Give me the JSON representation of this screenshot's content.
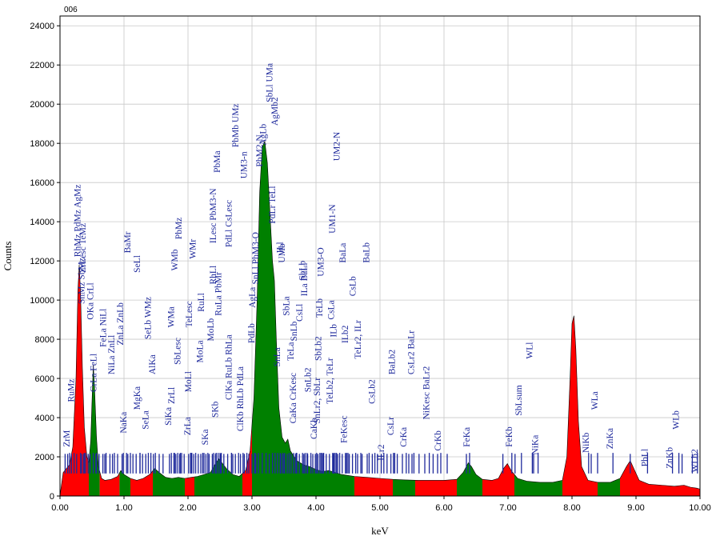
{
  "chart_data": {
    "type": "area",
    "spectrum_label": "006",
    "xlabel": "keV",
    "ylabel": "Counts",
    "xlim": [
      0,
      10
    ],
    "ylim": [
      0,
      24500
    ],
    "x_ticks": [
      "0.00",
      "1.00",
      "2.00",
      "3.00",
      "4.00",
      "5.00",
      "6.00",
      "7.00",
      "8.00",
      "9.00",
      "10.00"
    ],
    "y_ticks": [
      "0",
      "2000",
      "4000",
      "6000",
      "8000",
      "10000",
      "12000",
      "14000",
      "16000",
      "18000",
      "20000",
      "22000",
      "24000"
    ],
    "colors": {
      "high_region": "#ff0000",
      "low_region": "#008000",
      "markers": "#1f2a9c",
      "outline": "#000000"
    },
    "color_bands": [
      {
        "from": 0.0,
        "to": 0.45,
        "color": "red"
      },
      {
        "from": 0.45,
        "to": 0.62,
        "color": "green"
      },
      {
        "from": 0.62,
        "to": 0.93,
        "color": "red"
      },
      {
        "from": 0.93,
        "to": 1.1,
        "color": "green"
      },
      {
        "from": 1.1,
        "to": 1.45,
        "color": "red"
      },
      {
        "from": 1.45,
        "to": 1.95,
        "color": "green"
      },
      {
        "from": 1.95,
        "to": 2.1,
        "color": "red"
      },
      {
        "from": 2.1,
        "to": 2.85,
        "color": "green"
      },
      {
        "from": 2.85,
        "to": 3.0,
        "color": "red"
      },
      {
        "from": 3.0,
        "to": 4.6,
        "color": "green"
      },
      {
        "from": 4.6,
        "to": 5.2,
        "color": "red"
      },
      {
        "from": 5.2,
        "to": 5.55,
        "color": "green"
      },
      {
        "from": 5.55,
        "to": 6.2,
        "color": "red"
      },
      {
        "from": 6.2,
        "to": 6.6,
        "color": "green"
      },
      {
        "from": 6.6,
        "to": 7.1,
        "color": "red"
      },
      {
        "from": 7.1,
        "to": 7.85,
        "color": "green"
      },
      {
        "from": 7.85,
        "to": 8.4,
        "color": "red"
      },
      {
        "from": 8.4,
        "to": 8.75,
        "color": "green"
      },
      {
        "from": 8.75,
        "to": 10.0,
        "color": "red"
      }
    ],
    "spectrum": [
      [
        0.0,
        0
      ],
      [
        0.02,
        500
      ],
      [
        0.05,
        1200
      ],
      [
        0.1,
        1400
      ],
      [
        0.15,
        1600
      ],
      [
        0.2,
        2500
      ],
      [
        0.25,
        6000
      ],
      [
        0.28,
        10500
      ],
      [
        0.3,
        11800
      ],
      [
        0.32,
        10500
      ],
      [
        0.35,
        6500
      ],
      [
        0.38,
        3500
      ],
      [
        0.42,
        2000
      ],
      [
        0.45,
        1700
      ],
      [
        0.48,
        2800
      ],
      [
        0.5,
        4800
      ],
      [
        0.52,
        6700
      ],
      [
        0.54,
        5500
      ],
      [
        0.57,
        3000
      ],
      [
        0.6,
        1500
      ],
      [
        0.65,
        900
      ],
      [
        0.7,
        800
      ],
      [
        0.8,
        850
      ],
      [
        0.9,
        1000
      ],
      [
        0.95,
        1300
      ],
      [
        1.0,
        1100
      ],
      [
        1.1,
        900
      ],
      [
        1.2,
        800
      ],
      [
        1.3,
        900
      ],
      [
        1.4,
        1100
      ],
      [
        1.48,
        1400
      ],
      [
        1.55,
        1200
      ],
      [
        1.65,
        950
      ],
      [
        1.75,
        900
      ],
      [
        1.85,
        950
      ],
      [
        1.95,
        900
      ],
      [
        2.05,
        950
      ],
      [
        2.15,
        1000
      ],
      [
        2.25,
        1100
      ],
      [
        2.35,
        1200
      ],
      [
        2.42,
        1600
      ],
      [
        2.48,
        1900
      ],
      [
        2.53,
        1700
      ],
      [
        2.6,
        1400
      ],
      [
        2.7,
        1100
      ],
      [
        2.8,
        1000
      ],
      [
        2.9,
        1300
      ],
      [
        2.97,
        2300
      ],
      [
        3.03,
        5000
      ],
      [
        3.08,
        10000
      ],
      [
        3.12,
        15500
      ],
      [
        3.16,
        17800
      ],
      [
        3.2,
        18100
      ],
      [
        3.24,
        17000
      ],
      [
        3.28,
        14500
      ],
      [
        3.32,
        12000
      ],
      [
        3.35,
        11000
      ],
      [
        3.38,
        8000
      ],
      [
        3.42,
        4500
      ],
      [
        3.47,
        3000
      ],
      [
        3.52,
        2700
      ],
      [
        3.56,
        2900
      ],
      [
        3.6,
        2300
      ],
      [
        3.7,
        1800
      ],
      [
        3.8,
        1600
      ],
      [
        3.9,
        1500
      ],
      [
        4.0,
        1350
      ],
      [
        4.1,
        1250
      ],
      [
        4.2,
        1300
      ],
      [
        4.3,
        1200
      ],
      [
        4.4,
        1100
      ],
      [
        4.5,
        1050
      ],
      [
        4.6,
        1000
      ],
      [
        4.8,
        950
      ],
      [
        5.0,
        900
      ],
      [
        5.2,
        850
      ],
      [
        5.4,
        820
      ],
      [
        5.6,
        800
      ],
      [
        5.8,
        800
      ],
      [
        6.0,
        800
      ],
      [
        6.2,
        850
      ],
      [
        6.3,
        1200
      ],
      [
        6.38,
        1700
      ],
      [
        6.43,
        1500
      ],
      [
        6.5,
        1100
      ],
      [
        6.6,
        850
      ],
      [
        6.75,
        800
      ],
      [
        6.85,
        900
      ],
      [
        6.93,
        1400
      ],
      [
        6.99,
        1650
      ],
      [
        7.05,
        1300
      ],
      [
        7.15,
        900
      ],
      [
        7.3,
        750
      ],
      [
        7.5,
        700
      ],
      [
        7.7,
        700
      ],
      [
        7.85,
        800
      ],
      [
        7.92,
        2000
      ],
      [
        7.97,
        6000
      ],
      [
        8.0,
        8800
      ],
      [
        8.03,
        9200
      ],
      [
        8.06,
        7500
      ],
      [
        8.1,
        3800
      ],
      [
        8.15,
        1500
      ],
      [
        8.25,
        800
      ],
      [
        8.4,
        700
      ],
      [
        8.6,
        700
      ],
      [
        8.75,
        900
      ],
      [
        8.85,
        1500
      ],
      [
        8.91,
        1800
      ],
      [
        8.98,
        1300
      ],
      [
        9.05,
        800
      ],
      [
        9.2,
        600
      ],
      [
        9.4,
        550
      ],
      [
        9.6,
        500
      ],
      [
        9.75,
        550
      ],
      [
        9.85,
        450
      ],
      [
        9.95,
        400
      ],
      [
        10.0,
        350
      ]
    ],
    "markers": [
      {
        "label": "ZrM",
        "x": 0.15,
        "y": 2500
      },
      {
        "label": "RuMz",
        "x": 0.22,
        "y": 4800
      },
      {
        "label": "RhMz PdMz AgMz",
        "x": 0.32,
        "y": 12200
      },
      {
        "label": "SnMz SbMz",
        "x": 0.38,
        "y": 9800
      },
      {
        "label": "ZrLesc TeMz",
        "x": 0.4,
        "y": 11400
      },
      {
        "label": "OKa CrLl",
        "x": 0.52,
        "y": 9000
      },
      {
        "label": "CrLa FeLl",
        "x": 0.57,
        "y": 5300
      },
      {
        "label": "FeLa NiLl",
        "x": 0.72,
        "y": 7600
      },
      {
        "label": "NiLa ZnLl",
        "x": 0.85,
        "y": 6200
      },
      {
        "label": "ZnLa ZnLb",
        "x": 0.99,
        "y": 7700
      },
      {
        "label": "NaKa",
        "x": 1.04,
        "y": 3200
      },
      {
        "label": "BaMr",
        "x": 1.1,
        "y": 12400
      },
      {
        "label": "SeLl",
        "x": 1.25,
        "y": 11400
      },
      {
        "label": "MgKa",
        "x": 1.25,
        "y": 4400
      },
      {
        "label": "SeLa",
        "x": 1.38,
        "y": 3400
      },
      {
        "label": "SeLb WMz",
        "x": 1.42,
        "y": 8000
      },
      {
        "label": "AlKa",
        "x": 1.49,
        "y": 6200
      },
      {
        "label": "SiKa",
        "x": 1.74,
        "y": 3600
      },
      {
        "label": "ZrLl",
        "x": 1.79,
        "y": 4700
      },
      {
        "label": "WMa",
        "x": 1.78,
        "y": 8600
      },
      {
        "label": "WMb",
        "x": 1.84,
        "y": 11500
      },
      {
        "label": "SbLesc",
        "x": 1.88,
        "y": 6700
      },
      {
        "label": "PbMz",
        "x": 1.9,
        "y": 13100
      },
      {
        "label": "ZrLa",
        "x": 2.04,
        "y": 3100
      },
      {
        "label": "MoLl",
        "x": 2.05,
        "y": 5300
      },
      {
        "label": "TeLesc",
        "x": 2.06,
        "y": 8600
      },
      {
        "label": "WMr",
        "x": 2.12,
        "y": 12100
      },
      {
        "label": "MoLa",
        "x": 2.23,
        "y": 6800
      },
      {
        "label": "SKa",
        "x": 2.31,
        "y": 2600
      },
      {
        "label": "RuLl",
        "x": 2.25,
        "y": 9400
      },
      {
        "label": "MoLb",
        "x": 2.4,
        "y": 7900
      },
      {
        "label": "SKb",
        "x": 2.47,
        "y": 4000
      },
      {
        "label": "RhLl",
        "x": 2.44,
        "y": 10800
      },
      {
        "label": "ILesc PbM3-N",
        "x": 2.44,
        "y": 12900
      },
      {
        "label": "PbMa",
        "x": 2.5,
        "y": 16500
      },
      {
        "label": "RuLa PbMr",
        "x": 2.52,
        "y": 9200
      },
      {
        "label": "ClKa RuLb RhLa",
        "x": 2.68,
        "y": 4900
      },
      {
        "label": "PdLl CsLesc",
        "x": 2.68,
        "y": 12700
      },
      {
        "label": "PbMb UMz",
        "x": 2.79,
        "y": 17800
      },
      {
        "label": "ClKb RhLb PdLa",
        "x": 2.86,
        "y": 3300
      },
      {
        "label": "UM3-n",
        "x": 2.92,
        "y": 16200
      },
      {
        "label": "AgLa",
        "x": 3.05,
        "y": 9600
      },
      {
        "label": "PdLb",
        "x": 3.04,
        "y": 7800
      },
      {
        "label": "SnLl PbM3-O",
        "x": 3.1,
        "y": 10800
      },
      {
        "label": "PbM2-N",
        "x": 3.16,
        "y": 16800
      },
      {
        "label": "AgLb",
        "x": 3.22,
        "y": 17900
      },
      {
        "label": "SbLl UMa",
        "x": 3.32,
        "y": 20100
      },
      {
        "label": "PdLr TeLl",
        "x": 3.36,
        "y": 13900
      },
      {
        "label": "AgMb2",
        "x": 3.4,
        "y": 18900
      },
      {
        "label": "SnLa",
        "x": 3.44,
        "y": 6600
      },
      {
        "label": "ILl",
        "x": 3.48,
        "y": 12400
      },
      {
        "label": "UMb",
        "x": 3.51,
        "y": 11900
      },
      {
        "label": "SbLa",
        "x": 3.58,
        "y": 9200
      },
      {
        "label": "TeLa",
        "x": 3.65,
        "y": 6900
      },
      {
        "label": "CaKa CrKesc",
        "x": 3.69,
        "y": 3700
      },
      {
        "label": "SnLb",
        "x": 3.7,
        "y": 7900
      },
      {
        "label": "CsLl",
        "x": 3.79,
        "y": 8900
      },
      {
        "label": "SbLb",
        "x": 3.83,
        "y": 11000
      },
      {
        "label": "ILa BaLl",
        "x": 3.86,
        "y": 10200
      },
      {
        "label": "SnLb2",
        "x": 3.92,
        "y": 5300
      },
      {
        "label": "CaKb",
        "x": 4.01,
        "y": 2900
      },
      {
        "label": "SnLr2, SbLr",
        "x": 4.06,
        "y": 3700
      },
      {
        "label": "SbLb2",
        "x": 4.08,
        "y": 6900
      },
      {
        "label": "TeLb",
        "x": 4.1,
        "y": 9100
      },
      {
        "label": "UM3-O",
        "x": 4.12,
        "y": 11200
      },
      {
        "label": "TeLb2, TeLr",
        "x": 4.26,
        "y": 4700
      },
      {
        "label": "CsLa",
        "x": 4.28,
        "y": 9000
      },
      {
        "label": "UM1-N",
        "x": 4.3,
        "y": 13400
      },
      {
        "label": "ILb",
        "x": 4.32,
        "y": 8100
      },
      {
        "label": "UM2-N",
        "x": 4.37,
        "y": 17100
      },
      {
        "label": "FeKesc",
        "x": 4.48,
        "y": 2700
      },
      {
        "label": "BaLa",
        "x": 4.46,
        "y": 11900
      },
      {
        "label": "ILb2",
        "x": 4.5,
        "y": 7800
      },
      {
        "label": "CsLb",
        "x": 4.62,
        "y": 10200
      },
      {
        "label": "TeLr2, ILr",
        "x": 4.7,
        "y": 7000
      },
      {
        "label": "BaLb",
        "x": 4.83,
        "y": 11900
      },
      {
        "label": "CsLb2",
        "x": 4.92,
        "y": 4700
      },
      {
        "label": "ILr2",
        "x": 5.06,
        "y": 1800
      },
      {
        "label": "CsLr",
        "x": 5.21,
        "y": 3100
      },
      {
        "label": "BaLb2",
        "x": 5.23,
        "y": 6200
      },
      {
        "label": "CrKa",
        "x": 5.41,
        "y": 2500
      },
      {
        "label": "CsLr2 BaLr",
        "x": 5.53,
        "y": 6200
      },
      {
        "label": "NiKesc BaLr2",
        "x": 5.77,
        "y": 3900
      },
      {
        "label": "CrKb",
        "x": 5.95,
        "y": 2300
      },
      {
        "label": "FeKa",
        "x": 6.4,
        "y": 2500
      },
      {
        "label": "FeKb",
        "x": 7.06,
        "y": 2500
      },
      {
        "label": "SbLsum",
        "x": 7.21,
        "y": 4100
      },
      {
        "label": "NiKa",
        "x": 7.47,
        "y": 2100
      },
      {
        "label": "WLl",
        "x": 7.38,
        "y": 7000
      },
      {
        "label": "NiKb",
        "x": 8.26,
        "y": 2200
      },
      {
        "label": "WLa",
        "x": 8.4,
        "y": 4400
      },
      {
        "label": "ZnKa",
        "x": 8.64,
        "y": 2400
      },
      {
        "label": "PbLl",
        "x": 9.18,
        "y": 1500
      },
      {
        "label": "ZnKb",
        "x": 9.57,
        "y": 1400
      },
      {
        "label": "WLb",
        "x": 9.67,
        "y": 3400
      },
      {
        "label": "WLb2",
        "x": 9.96,
        "y": 1200
      }
    ],
    "minor_markers": [
      0.08,
      0.12,
      0.18,
      0.26,
      0.34,
      0.37,
      0.44,
      0.47,
      0.56,
      0.61,
      0.67,
      0.7,
      0.78,
      0.82,
      0.9,
      0.97,
      1.06,
      1.14,
      1.19,
      1.29,
      1.34,
      1.46,
      1.55,
      1.61,
      1.71,
      1.81,
      1.87,
      1.94,
      2.01,
      2.09,
      2.16,
      2.2,
      2.28,
      2.33,
      2.38,
      2.43,
      2.51,
      2.56,
      2.62,
      2.7,
      2.74,
      2.82,
      2.88,
      2.95,
      3.0,
      3.06,
      3.27,
      3.45,
      3.5,
      3.55,
      3.61,
      3.68,
      3.74,
      3.81,
      3.87,
      3.95,
      3.99,
      4.03,
      4.11,
      4.16,
      4.21,
      4.27,
      4.34,
      4.41,
      4.46,
      4.52,
      4.57,
      4.65,
      4.72,
      4.8,
      4.88,
      4.96,
      5.02,
      5.11,
      5.17,
      5.27,
      5.35,
      5.45,
      5.5,
      5.61,
      5.7,
      5.83,
      5.9,
      6.05,
      6.35,
      6.92,
      7.11,
      7.4,
      8.3,
      8.91,
      9.72,
      9.88
    ]
  }
}
